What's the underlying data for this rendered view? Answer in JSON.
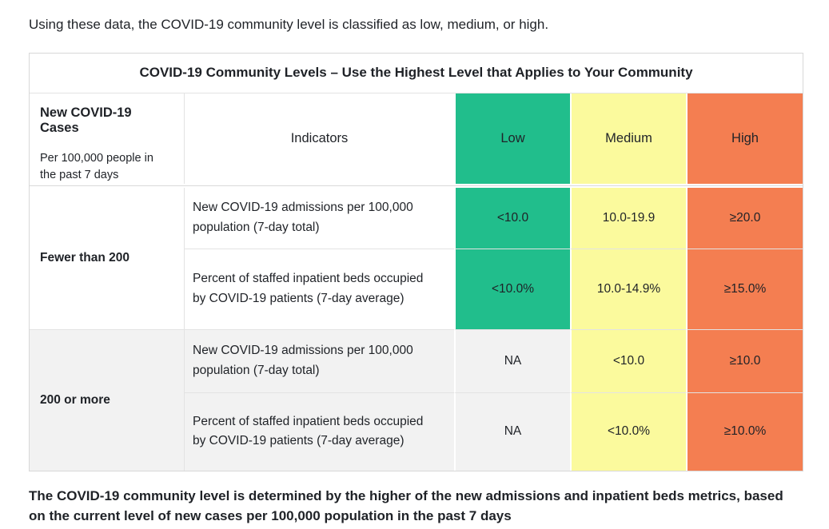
{
  "page": {
    "intro_text": "Using these data, the COVID-19 community level is classified as low, medium, or high.",
    "footer_text": "The COVID-19 community level is determined by the higher of the new admissions and inpatient beds metrics, based on the current level of new cases per 100,000 population in the past 7 days"
  },
  "table": {
    "title": "COVID-19 Community Levels – Use the Highest Level that Applies to Your Community",
    "header": {
      "cases_title": "New COVID-19 Cases",
      "cases_subtitle": "Per 100,000 people in the past 7 days",
      "indicators": "Indicators",
      "levels": {
        "low": "Low",
        "medium": "Medium",
        "high": "High"
      }
    },
    "groups": [
      {
        "label": "Fewer than 200",
        "rows": [
          {
            "indicator": "New COVID-19 admissions per 100,000 population (7-day total)",
            "low": "<10.0",
            "medium": "10.0-19.9",
            "high": "≥20.0"
          },
          {
            "indicator": "Percent of staffed inpatient beds occupied by COVID-19 patients (7-day average)",
            "low": "<10.0%",
            "medium": "10.0-14.9%",
            "high": "≥15.0%"
          }
        ]
      },
      {
        "label": "200 or more",
        "rows": [
          {
            "indicator": "New COVID-19 admissions per 100,000 population (7-day total)",
            "low": "NA",
            "medium": "<10.0",
            "high": "≥10.0"
          },
          {
            "indicator": "Percent of staffed inpatient beds occupied by COVID-19 patients (7-day average)",
            "low": "NA",
            "medium": "<10.0%",
            "high": "≥10.0%"
          }
        ]
      }
    ],
    "colors": {
      "low": "#21be8c",
      "medium": "#fbfa9d",
      "high": "#f47e51",
      "na_cell": "#f2f2f2",
      "border": "#d9d9d9"
    }
  }
}
